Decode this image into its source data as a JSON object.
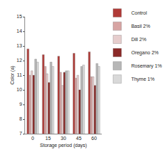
{
  "chart_data": {
    "type": "bar",
    "x_label": "Storage period (days)",
    "y_label": "Color (a)",
    "categories": [
      "0",
      "15",
      "30",
      "45",
      "60"
    ],
    "series": [
      {
        "name": "Control",
        "color": "#b03a37",
        "values": [
          12.8,
          12.4,
          12.3,
          12.5,
          12.6
        ]
      },
      {
        "name": "Basil 2%",
        "color": "#d7a4a3",
        "values": [
          11.0,
          11.6,
          11.2,
          10.8,
          10.9
        ]
      },
      {
        "name": "Dill 2%",
        "color": "#e6cdcd",
        "values": [
          11.3,
          11.1,
          10.3,
          11.0,
          10.9
        ]
      },
      {
        "name": "Oregano 2%",
        "color": "#8b2a28",
        "values": [
          11.0,
          10.5,
          11.2,
          10.0,
          10.3
        ]
      },
      {
        "name": "Rosemary 1%",
        "color": "#b7b7b7",
        "values": [
          12.1,
          11.9,
          11.3,
          11.6,
          11.8
        ]
      },
      {
        "name": "Thyme 1%",
        "color": "#d9d9d9",
        "values": [
          11.9,
          11.6,
          11.3,
          11.7,
          11.6
        ]
      }
    ],
    "ylim": [
      7,
      15
    ],
    "yticks": [
      7,
      8,
      9,
      10,
      11,
      12,
      13,
      14,
      15
    ],
    "grid": false,
    "legend": "right"
  }
}
